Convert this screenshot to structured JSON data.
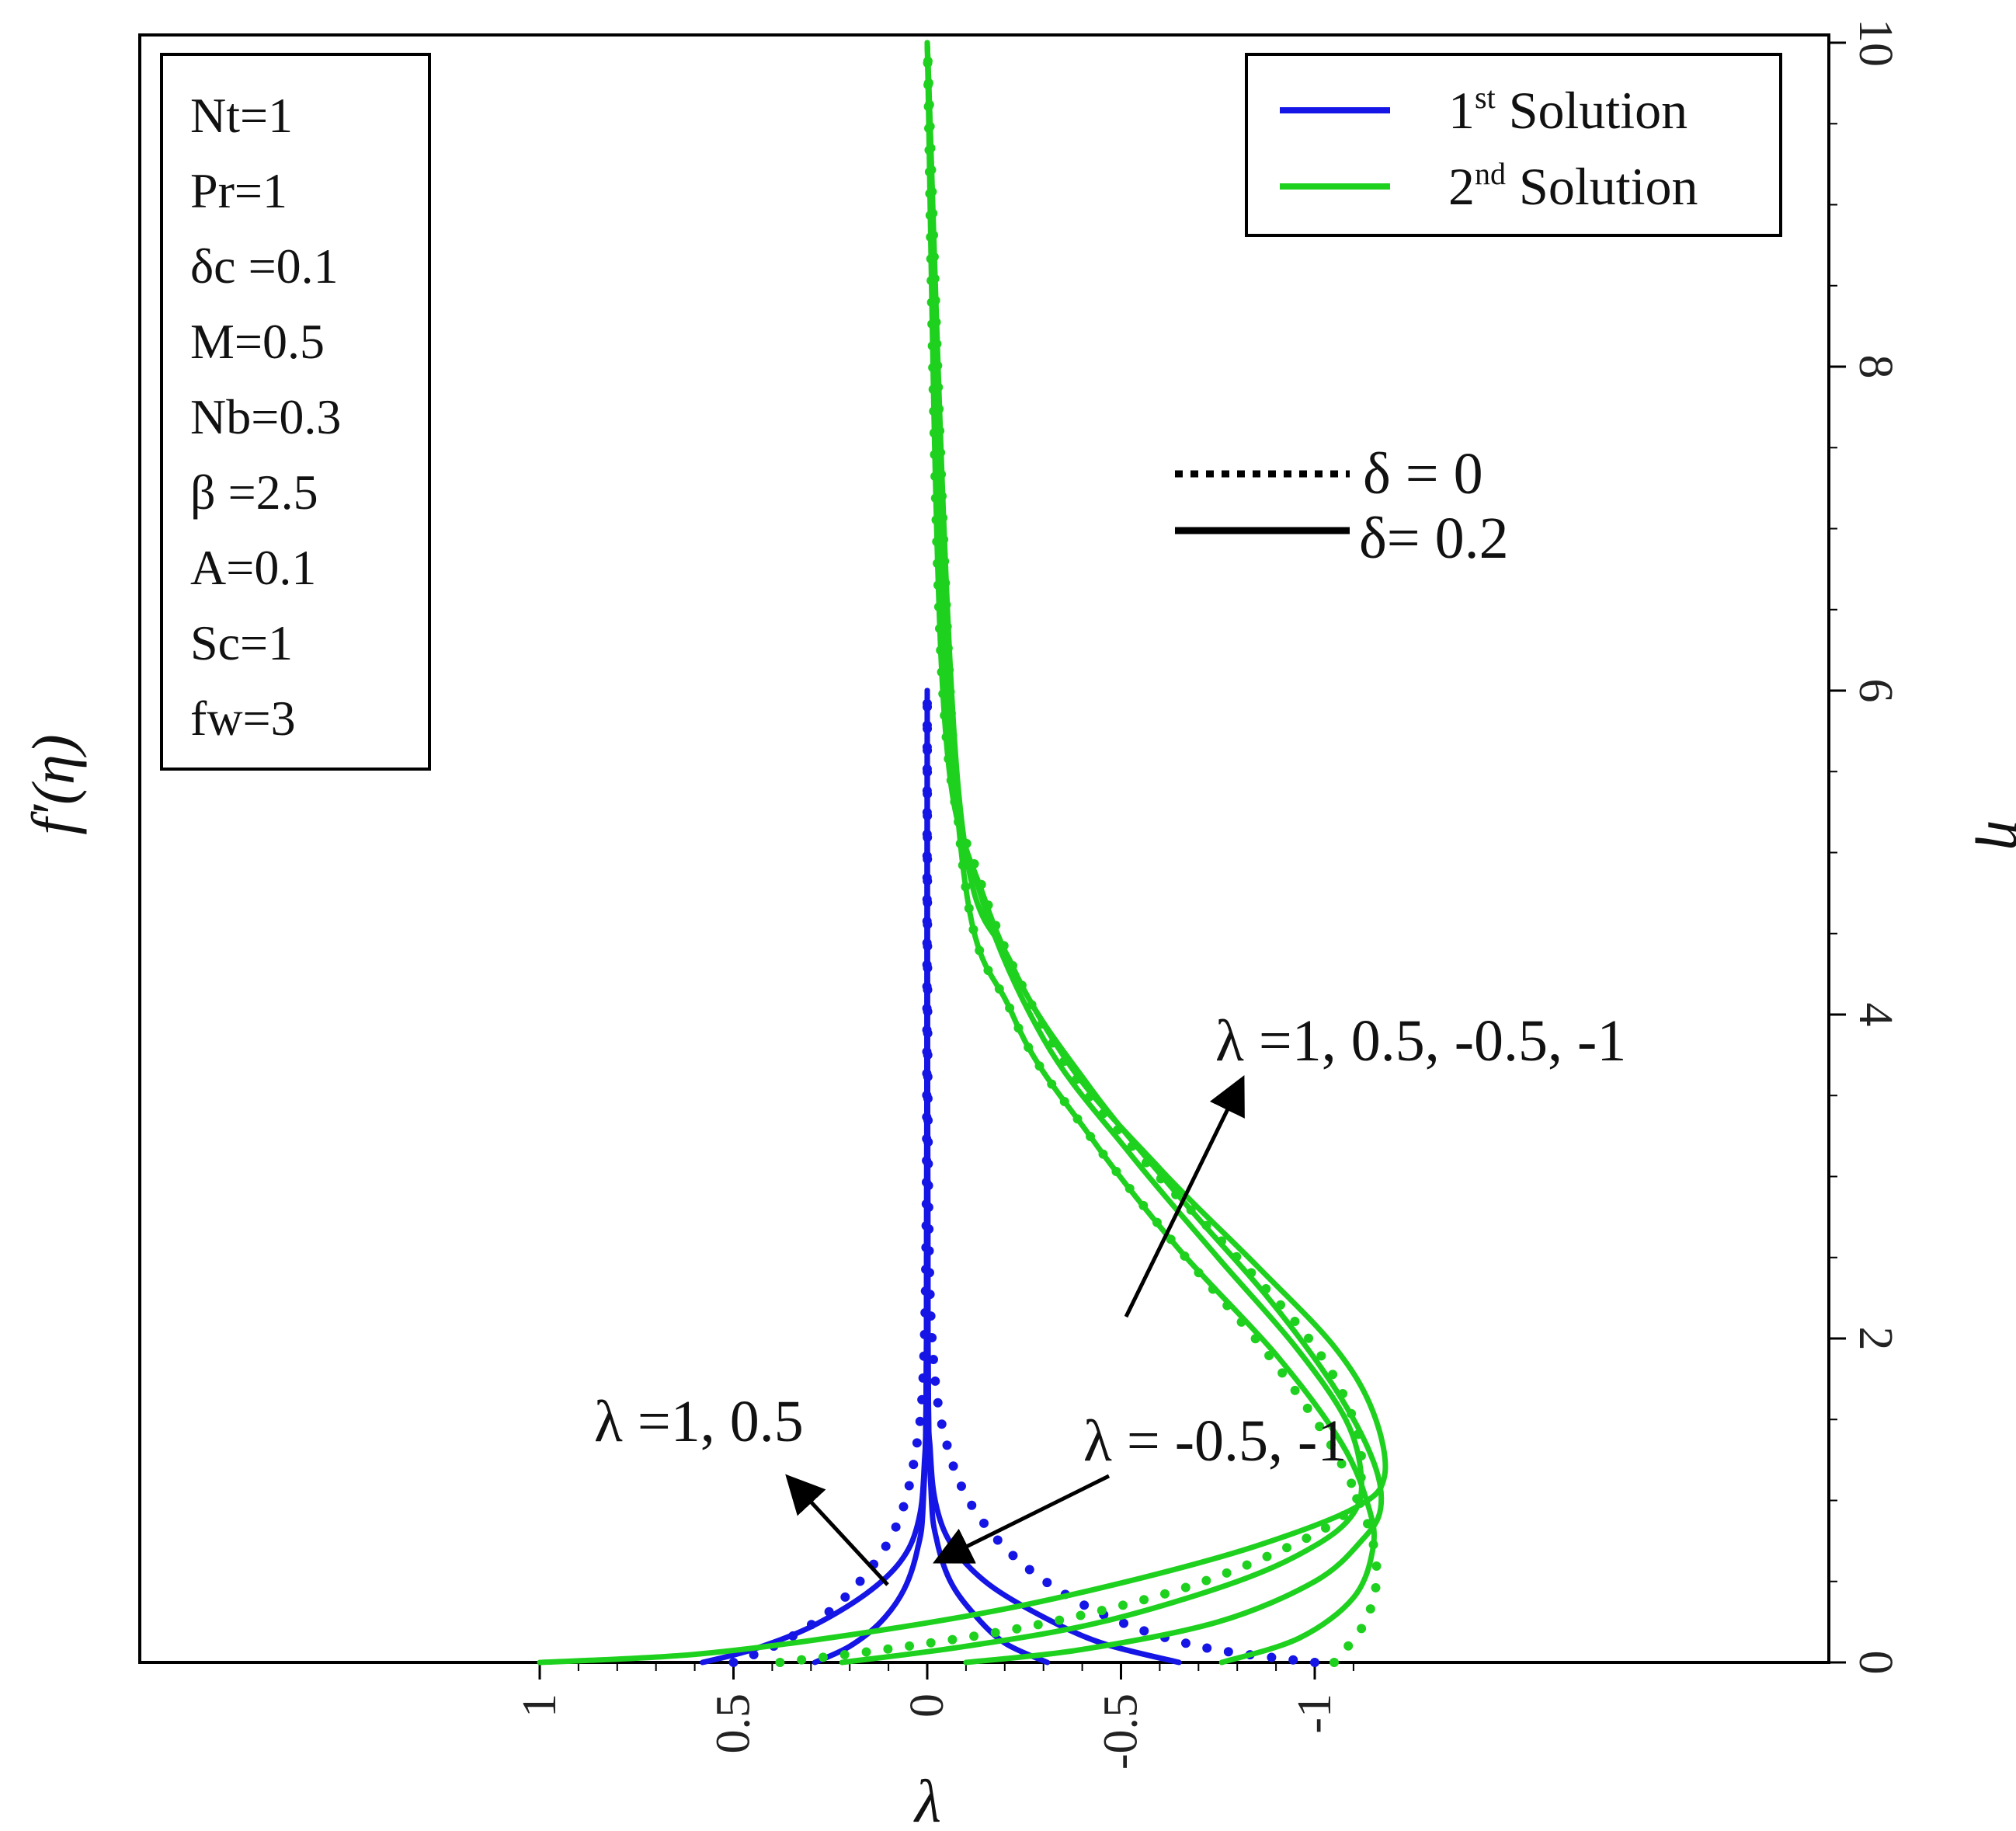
{
  "chart_data": {
    "type": "line",
    "xlabel": "λ",
    "ylabel_left": "f′(η)",
    "ylabel_right": "η",
    "xlim": [
      1,
      -1.15
    ],
    "ylim": [
      0,
      10
    ],
    "x_ticks": [
      "1",
      "0.5",
      "0",
      "-0.5",
      "-1"
    ],
    "y_ticks": [
      "0",
      "2",
      "4",
      "6",
      "8",
      "10"
    ],
    "legend": {
      "position": "top-right",
      "entries": [
        {
          "base": "1",
          "sup": "st",
          "text": " Solution",
          "color": "#1515e6"
        },
        {
          "base": "2",
          "sup": "nd",
          "text": " Solution",
          "color": "#1fd11f"
        }
      ]
    },
    "style_legend": {
      "entries": [
        {
          "label": "δ = 0",
          "style": "dotted"
        },
        {
          "label": "δ= 0.2",
          "style": "solid"
        }
      ]
    },
    "params": [
      "Nt=1",
      "Pr=1",
      "δc =0.1",
      "M=0.5",
      "Nb=0.3",
      "β =2.5",
      "A=0.1",
      "Sc=1",
      "fw=3"
    ],
    "annotations": {
      "green_lambda": "λ =1, 0.5, -0.5, -1",
      "blue_lambda_left": "λ =1, 0.5",
      "blue_lambda_right": "λ = -0.5, -1"
    },
    "colors": {
      "first": "#1515e6",
      "second": "#1fd11f",
      "axis": "#000000"
    },
    "series": [
      {
        "group": "first",
        "style": "solid",
        "lambda": "1",
        "eta_max": 6,
        "points": [
          [
            0.58,
            0
          ],
          [
            0.45,
            0.08
          ],
          [
            0.3,
            0.22
          ],
          [
            0.16,
            0.42
          ],
          [
            0.07,
            0.62
          ],
          [
            0.025,
            0.85
          ],
          [
            0.008,
            1.2
          ],
          [
            0.002,
            2
          ],
          [
            0,
            6
          ]
        ]
      },
      {
        "group": "first",
        "style": "solid",
        "lambda": "0.5",
        "eta_max": 6,
        "points": [
          [
            0.29,
            0
          ],
          [
            0.2,
            0.1
          ],
          [
            0.12,
            0.25
          ],
          [
            0.06,
            0.45
          ],
          [
            0.025,
            0.7
          ],
          [
            0.01,
            1.0
          ],
          [
            0.002,
            2
          ],
          [
            0,
            6
          ]
        ]
      },
      {
        "group": "first",
        "style": "solid",
        "lambda": "-0.5",
        "eta_max": 6,
        "points": [
          [
            -0.31,
            0
          ],
          [
            -0.2,
            0.12
          ],
          [
            -0.12,
            0.3
          ],
          [
            -0.06,
            0.5
          ],
          [
            -0.025,
            0.75
          ],
          [
            -0.01,
            1.05
          ],
          [
            -0.002,
            2
          ],
          [
            0,
            6
          ]
        ]
      },
      {
        "group": "first",
        "style": "solid",
        "lambda": "-1",
        "eta_max": 6,
        "points": [
          [
            -0.65,
            0
          ],
          [
            -0.45,
            0.12
          ],
          [
            -0.3,
            0.28
          ],
          [
            -0.16,
            0.48
          ],
          [
            -0.07,
            0.7
          ],
          [
            -0.025,
            0.95
          ],
          [
            -0.008,
            1.3
          ],
          [
            -0.002,
            2
          ],
          [
            0,
            6
          ]
        ]
      },
      {
        "group": "first",
        "style": "dotted",
        "lambda": "1",
        "eta_max": 6,
        "points": [
          [
            0.5,
            0
          ],
          [
            0.38,
            0.12
          ],
          [
            0.25,
            0.32
          ],
          [
            0.14,
            0.6
          ],
          [
            0.07,
            0.9
          ],
          [
            0.03,
            1.3
          ],
          [
            0.01,
            1.8
          ],
          [
            0.002,
            3
          ],
          [
            0,
            6
          ]
        ]
      },
      {
        "group": "first",
        "style": "dotted",
        "lambda": "-1",
        "eta_max": 6,
        "points": [
          [
            -1,
            0
          ],
          [
            -0.7,
            0.1
          ],
          [
            -0.45,
            0.3
          ],
          [
            -0.25,
            0.6
          ],
          [
            -0.12,
            0.95
          ],
          [
            -0.05,
            1.35
          ],
          [
            -0.015,
            1.9
          ],
          [
            -0.003,
            3
          ],
          [
            0,
            6
          ]
        ]
      },
      {
        "group": "second",
        "style": "solid",
        "lambda": "1",
        "eta_max": 10,
        "points": [
          [
            1,
            0
          ],
          [
            0.6,
            0.05
          ],
          [
            0.2,
            0.17
          ],
          [
            -0.2,
            0.33
          ],
          [
            -0.55,
            0.52
          ],
          [
            -0.85,
            0.72
          ],
          [
            -1.1,
            0.95
          ],
          [
            -1.18,
            1.15
          ],
          [
            -1.15,
            1.55
          ],
          [
            -1.05,
            1.95
          ],
          [
            -0.85,
            2.45
          ],
          [
            -0.6,
            3.05
          ],
          [
            -0.35,
            3.75
          ],
          [
            -0.15,
            4.7
          ],
          [
            -0.05,
            5.9
          ],
          [
            0,
            10
          ]
        ]
      },
      {
        "group": "second",
        "style": "solid",
        "lambda": "0.5",
        "eta_max": 10,
        "points": [
          [
            0.22,
            0
          ],
          [
            -0.1,
            0.1
          ],
          [
            -0.45,
            0.25
          ],
          [
            -0.8,
            0.5
          ],
          [
            -1.0,
            0.72
          ],
          [
            -1.1,
            0.92
          ],
          [
            -1.12,
            1.15
          ],
          [
            -1.08,
            1.5
          ],
          [
            -0.95,
            1.95
          ],
          [
            -0.75,
            2.5
          ],
          [
            -0.52,
            3.15
          ],
          [
            -0.3,
            3.85
          ],
          [
            -0.13,
            4.8
          ],
          [
            -0.04,
            6
          ],
          [
            0,
            10
          ]
        ]
      },
      {
        "group": "second",
        "style": "solid",
        "lambda": "-0.5",
        "eta_max": 10,
        "points": [
          [
            -0.1,
            0
          ],
          [
            -0.4,
            0.08
          ],
          [
            -0.75,
            0.25
          ],
          [
            -1.0,
            0.5
          ],
          [
            -1.12,
            0.75
          ],
          [
            -1.17,
            0.95
          ],
          [
            -1.15,
            1.25
          ],
          [
            -1.05,
            1.7
          ],
          [
            -0.88,
            2.25
          ],
          [
            -0.66,
            2.85
          ],
          [
            -0.42,
            3.55
          ],
          [
            -0.22,
            4.3
          ],
          [
            -0.08,
            5.4
          ],
          [
            0,
            10
          ]
        ]
      },
      {
        "group": "second",
        "style": "solid",
        "lambda": "-1",
        "eta_max": 10,
        "points": [
          [
            -0.76,
            0
          ],
          [
            -0.96,
            0.15
          ],
          [
            -1.1,
            0.4
          ],
          [
            -1.15,
            0.7
          ],
          [
            -1.14,
            0.95
          ],
          [
            -1.07,
            1.35
          ],
          [
            -0.9,
            1.9
          ],
          [
            -0.65,
            2.55
          ],
          [
            -0.42,
            3.25
          ],
          [
            -0.22,
            4.0
          ],
          [
            -0.08,
            5.2
          ],
          [
            0,
            10
          ]
        ]
      },
      {
        "group": "second",
        "style": "dotted",
        "lambda": "1",
        "eta_max": 10,
        "points": [
          [
            0.38,
            0
          ],
          [
            0.05,
            0.1
          ],
          [
            -0.3,
            0.24
          ],
          [
            -0.65,
            0.45
          ],
          [
            -0.92,
            0.7
          ],
          [
            -1.08,
            0.92
          ],
          [
            -1.12,
            1.15
          ],
          [
            -1.1,
            1.5
          ],
          [
            -1.0,
            1.95
          ],
          [
            -0.8,
            2.5
          ],
          [
            -0.56,
            3.1
          ],
          [
            -0.33,
            3.8
          ],
          [
            -0.14,
            4.8
          ],
          [
            -0.04,
            6
          ],
          [
            0,
            10
          ]
        ]
      },
      {
        "group": "second",
        "style": "dotted",
        "lambda": "-1",
        "eta_max": 10,
        "points": [
          [
            -1.05,
            0
          ],
          [
            -1.13,
            0.25
          ],
          [
            -1.16,
            0.55
          ],
          [
            -1.13,
            0.9
          ],
          [
            -1.04,
            1.35
          ],
          [
            -0.88,
            1.9
          ],
          [
            -0.65,
            2.55
          ],
          [
            -0.42,
            3.25
          ],
          [
            -0.22,
            4.0
          ],
          [
            -0.08,
            5.2
          ],
          [
            0,
            10
          ]
        ]
      }
    ]
  }
}
